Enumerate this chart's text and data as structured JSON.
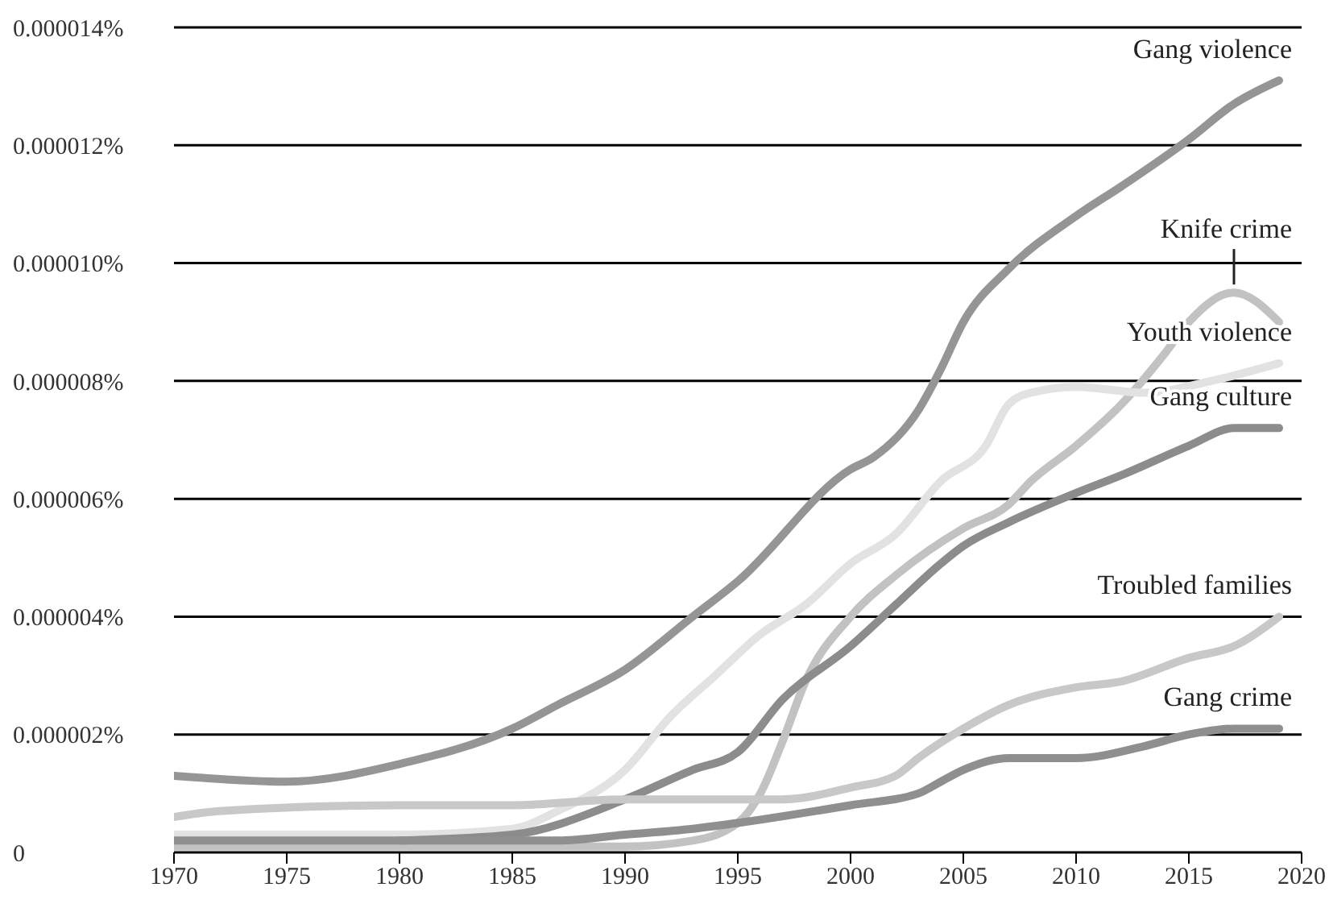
{
  "chart_data": {
    "type": "line",
    "grid": "y",
    "legend": false,
    "marker": "none",
    "line_style": "solid",
    "xlim": [
      1970,
      2020
    ],
    "xticks": [
      1970,
      1975,
      1980,
      1985,
      1990,
      1995,
      2000,
      2005,
      2010,
      2015,
      2020
    ],
    "ylim": [
      0,
      1.4e-05
    ],
    "yticks": [
      0,
      {
        "value": 2e-06,
        "label": "0.000002%"
      },
      {
        "value": 4e-06,
        "label": "0.000004%"
      },
      {
        "value": 6e-06,
        "label": "0.000006%"
      },
      {
        "value": 8e-06,
        "label": "0.000008%"
      },
      {
        "value": 1e-05,
        "label": "0.000010%"
      },
      {
        "value": 1.2e-05,
        "label": "0.000012%"
      },
      {
        "value": 1.4e-05,
        "label": "0.000014%"
      }
    ],
    "series": [
      {
        "name": "Gang violence",
        "color": "#959595",
        "x": [
          1970,
          1975,
          1980,
          1985,
          1987,
          1990,
          1993,
          1995,
          2000,
          2001,
          2003,
          2004,
          2005,
          2007,
          2010,
          2012,
          2015,
          2017,
          2019
        ],
        "values": [
          1.3e-06,
          1.2e-06,
          1.5e-06,
          2.1e-06,
          2.5e-06,
          3.1e-06,
          4e-06,
          4.6e-06,
          6.5e-06,
          6.7e-06,
          7.5e-06,
          8.2e-06,
          9e-06,
          9.9e-06,
          1.08e-05,
          1.13e-05,
          1.21e-05,
          1.27e-05,
          1.31e-05
        ]
      },
      {
        "name": "Knife crime",
        "color": "#c2c2c2",
        "x": [
          1970,
          1980,
          1988,
          1990,
          1993,
          1995,
          1996,
          1997,
          1998,
          2000,
          2002,
          2005,
          2007,
          2008,
          2010,
          2012,
          2014,
          2015,
          2017,
          2019
        ],
        "values": [
          1e-07,
          1e-07,
          1e-07,
          1e-07,
          2e-07,
          5e-07,
          1e-06,
          1.9e-06,
          2.9e-06,
          4e-06,
          4.7e-06,
          5.5e-06,
          5.9e-06,
          6.3e-06,
          6.9e-06,
          7.6e-06,
          8.5e-06,
          9e-06,
          9.5e-06,
          9e-06
        ]
      },
      {
        "name": "Youth violence",
        "color": "#e2e2e2",
        "x": [
          1970,
          1980,
          1985,
          1987,
          1990,
          1992,
          1994,
          1996,
          1998,
          2000,
          2002,
          2004,
          2006,
          2007,
          2008,
          2010,
          2013,
          2016,
          2019
        ],
        "values": [
          3e-07,
          3e-07,
          4e-07,
          7e-07,
          1.4e-06,
          2.3e-06,
          3e-06,
          3.7e-06,
          4.2e-06,
          4.9e-06,
          5.4e-06,
          6.3e-06,
          6.9e-06,
          7.6e-06,
          7.8e-06,
          7.9e-06,
          7.8e-06,
          8e-06,
          8.3e-06
        ]
      },
      {
        "name": "Gang culture",
        "color": "#8c8c8c",
        "x": [
          1980,
          1985,
          1990,
          1993,
          1995,
          1997,
          2000,
          2002,
          2004,
          2005,
          2007,
          2010,
          2012,
          2015,
          2017,
          2019
        ],
        "values": [
          2e-07,
          3e-07,
          9e-07,
          1.4e-06,
          1.7e-06,
          2.6e-06,
          3.5e-06,
          4.2e-06,
          4.9e-06,
          5.2e-06,
          5.6e-06,
          6.1e-06,
          6.4e-06,
          6.9e-06,
          7.2e-06,
          7.2e-06
        ]
      },
      {
        "name": "Troubled families",
        "color": "#c8c8c8",
        "x": [
          1970,
          1972,
          1980,
          1982,
          1985,
          1990,
          1995,
          1997,
          2000,
          2002,
          2003,
          2005,
          2007,
          2010,
          2012,
          2015,
          2017,
          2019
        ],
        "values": [
          6e-07,
          7e-07,
          8e-07,
          8e-07,
          8e-07,
          9e-07,
          9e-07,
          9e-07,
          1.1e-06,
          1.3e-06,
          1.6e-06,
          2.1e-06,
          2.5e-06,
          2.8e-06,
          2.9e-06,
          3.3e-06,
          3.5e-06,
          4e-06
        ]
      },
      {
        "name": "Gang crime",
        "color": "#8f8f8f",
        "x": [
          1970,
          1975,
          1985,
          1987,
          1990,
          1993,
          1995,
          2000,
          2003,
          2004,
          2005,
          2007,
          2008,
          2010,
          2013,
          2015,
          2017,
          2019
        ],
        "values": [
          2e-07,
          2e-07,
          2e-07,
          2e-07,
          3e-07,
          4e-07,
          5e-07,
          8e-07,
          1e-06,
          1.2e-06,
          1.4e-06,
          1.6e-06,
          1.6e-06,
          1.6e-06,
          1.8e-06,
          2e-06,
          2.1e-06,
          2.1e-06
        ]
      }
    ]
  }
}
